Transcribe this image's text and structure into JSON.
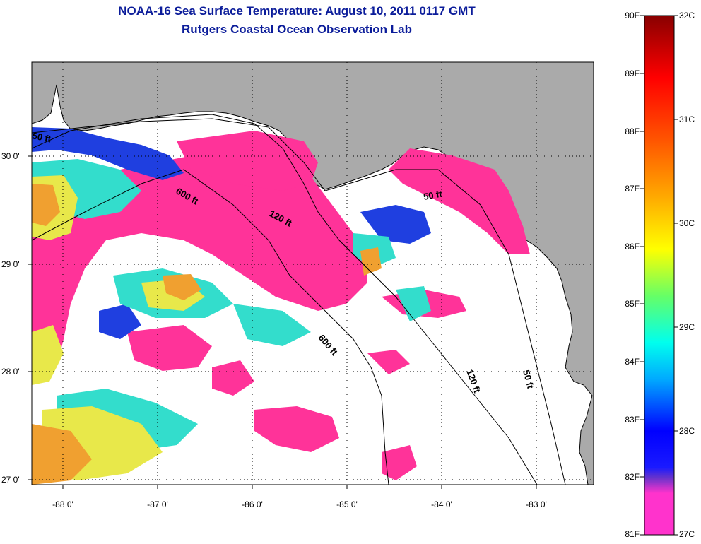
{
  "title": "NOAA-16 Sea Surface Temperature:  August 10, 2011 0117 GMT",
  "subtitle": "Rutgers Coastal Ocean Observation Lab",
  "map": {
    "longitude_labels": [
      "-88 0'",
      "-87 0'",
      "-86 0'",
      "-85 0'",
      "-84 0'",
      "-83 0'"
    ],
    "latitude_labels": [
      "30 0'",
      "29 0'",
      "28 0'",
      "27 0'"
    ],
    "isobath_labels": [
      "50 ft",
      "600 ft",
      "120 ft",
      "50 ft",
      "600 ft",
      "120 ft",
      "50 ft"
    ],
    "colors": {
      "land": "#aaaaaa",
      "no_data": "#ffffff",
      "sst_low": "#ff3399",
      "contour": "#000000",
      "frame": "#000000"
    }
  },
  "colorbar": {
    "fahrenheit_labels": [
      "90F",
      "89F",
      "88F",
      "87F",
      "86F",
      "85F",
      "84F",
      "83F",
      "82F",
      "81F"
    ],
    "celsius_labels": [
      "32C",
      "31C",
      "30C",
      "29C",
      "28C",
      "27C"
    ],
    "scale_F": [
      81,
      90
    ],
    "scale_C": [
      27,
      32
    ],
    "stops": [
      "#ff33cc",
      "#8844dd",
      "#0000ff",
      "#0066ff",
      "#00ccff",
      "#00ffcc",
      "#66ff66",
      "#ccff00",
      "#ffff00",
      "#ffaa00",
      "#ff6600",
      "#ff0000",
      "#990000"
    ]
  }
}
